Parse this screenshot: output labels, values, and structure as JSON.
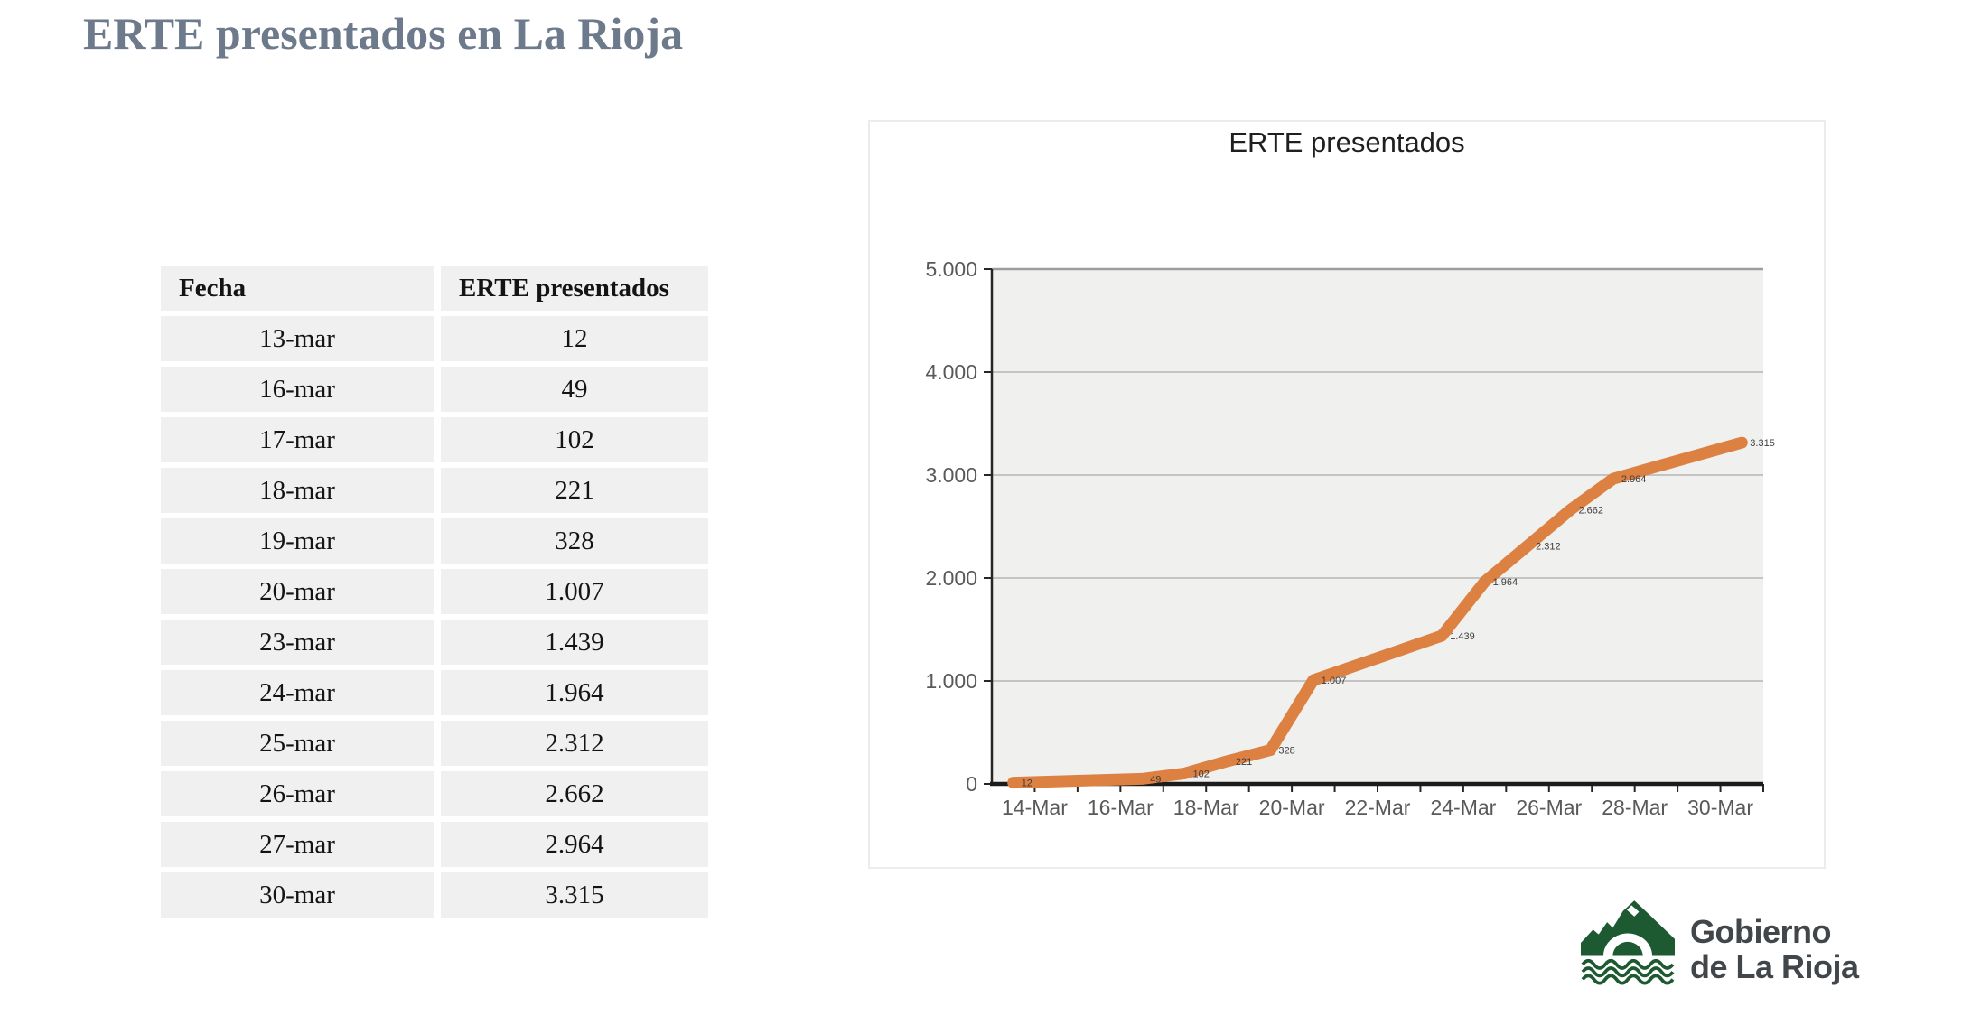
{
  "page": {
    "title": "ERTE presentados en La Rioja"
  },
  "table": {
    "headers": [
      "Fecha",
      "ERTE presentados"
    ],
    "rows": [
      [
        "13-mar",
        "12"
      ],
      [
        "16-mar",
        "49"
      ],
      [
        "17-mar",
        "102"
      ],
      [
        "18-mar",
        "221"
      ],
      [
        "19-mar",
        "328"
      ],
      [
        "20-mar",
        "1.007"
      ],
      [
        "23-mar",
        "1.439"
      ],
      [
        "24-mar",
        "1.964"
      ],
      [
        "25-mar",
        "2.312"
      ],
      [
        "26-mar",
        "2.662"
      ],
      [
        "27-mar",
        "2.964"
      ],
      [
        "30-mar",
        "3.315"
      ]
    ]
  },
  "chart_data": {
    "type": "line",
    "title": "ERTE presentados",
    "xlabel": "",
    "ylabel": "",
    "x_unit": "day of March",
    "x": [
      13,
      16,
      17,
      18,
      19,
      20,
      23,
      24,
      25,
      26,
      27,
      30
    ],
    "values": [
      12,
      49,
      102,
      221,
      328,
      1007,
      1439,
      1964,
      2312,
      2662,
      2964,
      3315
    ],
    "data_labels": [
      "12",
      "49",
      "102",
      "221",
      "328",
      "1.007",
      "1.439",
      "1.964",
      "2.312",
      "2.662",
      "2.964",
      "3.315"
    ],
    "xlim": [
      13,
      31
    ],
    "ylim": [
      0,
      5000
    ],
    "y_step": 1000,
    "y_tick_labels": [
      "0",
      "1.000",
      "2.000",
      "3.000",
      "4.000",
      "5.000"
    ],
    "x_label_days": [
      14,
      16,
      18,
      20,
      22,
      24,
      26,
      28,
      30
    ],
    "x_tick_labels": [
      "14-Mar",
      "16-Mar",
      "18-Mar",
      "20-Mar",
      "22-Mar",
      "24-Mar",
      "26-Mar",
      "28-Mar",
      "30-Mar"
    ],
    "grid": true,
    "legend": "none",
    "line_color": "#DD8142",
    "plot_bg": "#f0f0ef",
    "grid_color": "#b5b5b5",
    "top_grid_color": "#9d9d9d",
    "axis_color": "#262626",
    "tick_label_color": "#595959",
    "data_label_color": "#3d3d3d"
  },
  "logo": {
    "line1": "Gobierno",
    "line2": "de La Rioja",
    "green": "#1d5a32"
  }
}
